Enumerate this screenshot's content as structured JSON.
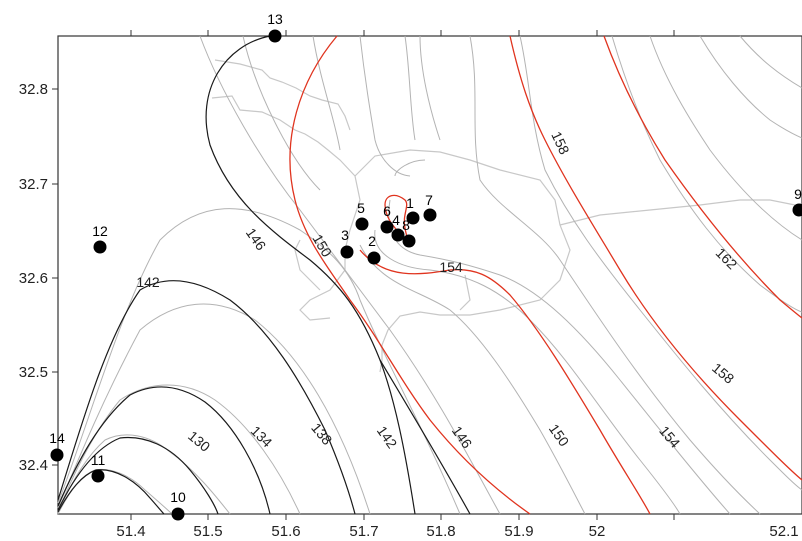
{
  "map": {
    "x_axis_ticks": [
      "51.4",
      "51.5",
      "51.6",
      "51.7",
      "51.8",
      "51.9",
      "52",
      "52.1"
    ],
    "y_axis_ticks": [
      "32.8",
      "32.7",
      "32.6",
      "32.5",
      "32.4"
    ],
    "contour_labels": [
      "130",
      "134",
      "138",
      "142",
      "146",
      "142",
      "146",
      "150",
      "154",
      "150",
      "154",
      "158",
      "158",
      "162"
    ],
    "colors": {
      "major_contour": "#e0341f",
      "intermediate_contour": "#1a1a1a",
      "minor_contour": "#b3b3b3",
      "boundary": "#c8c8c8",
      "station": "#000000"
    },
    "stations": [
      {
        "label": "1",
        "lon": 51.7,
        "lat": 32.665
      },
      {
        "label": "2",
        "lon": 51.66,
        "lat": 32.623
      },
      {
        "label": "3",
        "lon": 51.63,
        "lat": 32.63
      },
      {
        "label": "4",
        "lon": 51.685,
        "lat": 32.647
      },
      {
        "label": "5",
        "lon": 51.648,
        "lat": 32.659
      },
      {
        "label": "6",
        "lon": 51.675,
        "lat": 32.656
      },
      {
        "label": "7",
        "lon": 51.718,
        "lat": 32.669
      },
      {
        "label": "8",
        "lon": 51.695,
        "lat": 32.641
      },
      {
        "label": "9",
        "lon": 52.11,
        "lat": 32.675
      },
      {
        "label": "10",
        "lon": 51.45,
        "lat": 32.351
      },
      {
        "label": "11",
        "lon": 51.367,
        "lat": 32.392
      },
      {
        "label": "12",
        "lon": 51.367,
        "lat": 32.634
      },
      {
        "label": "13",
        "lon": 51.555,
        "lat": 32.86
      },
      {
        "label": "14",
        "lon": 51.32,
        "lat": 32.415
      }
    ]
  }
}
